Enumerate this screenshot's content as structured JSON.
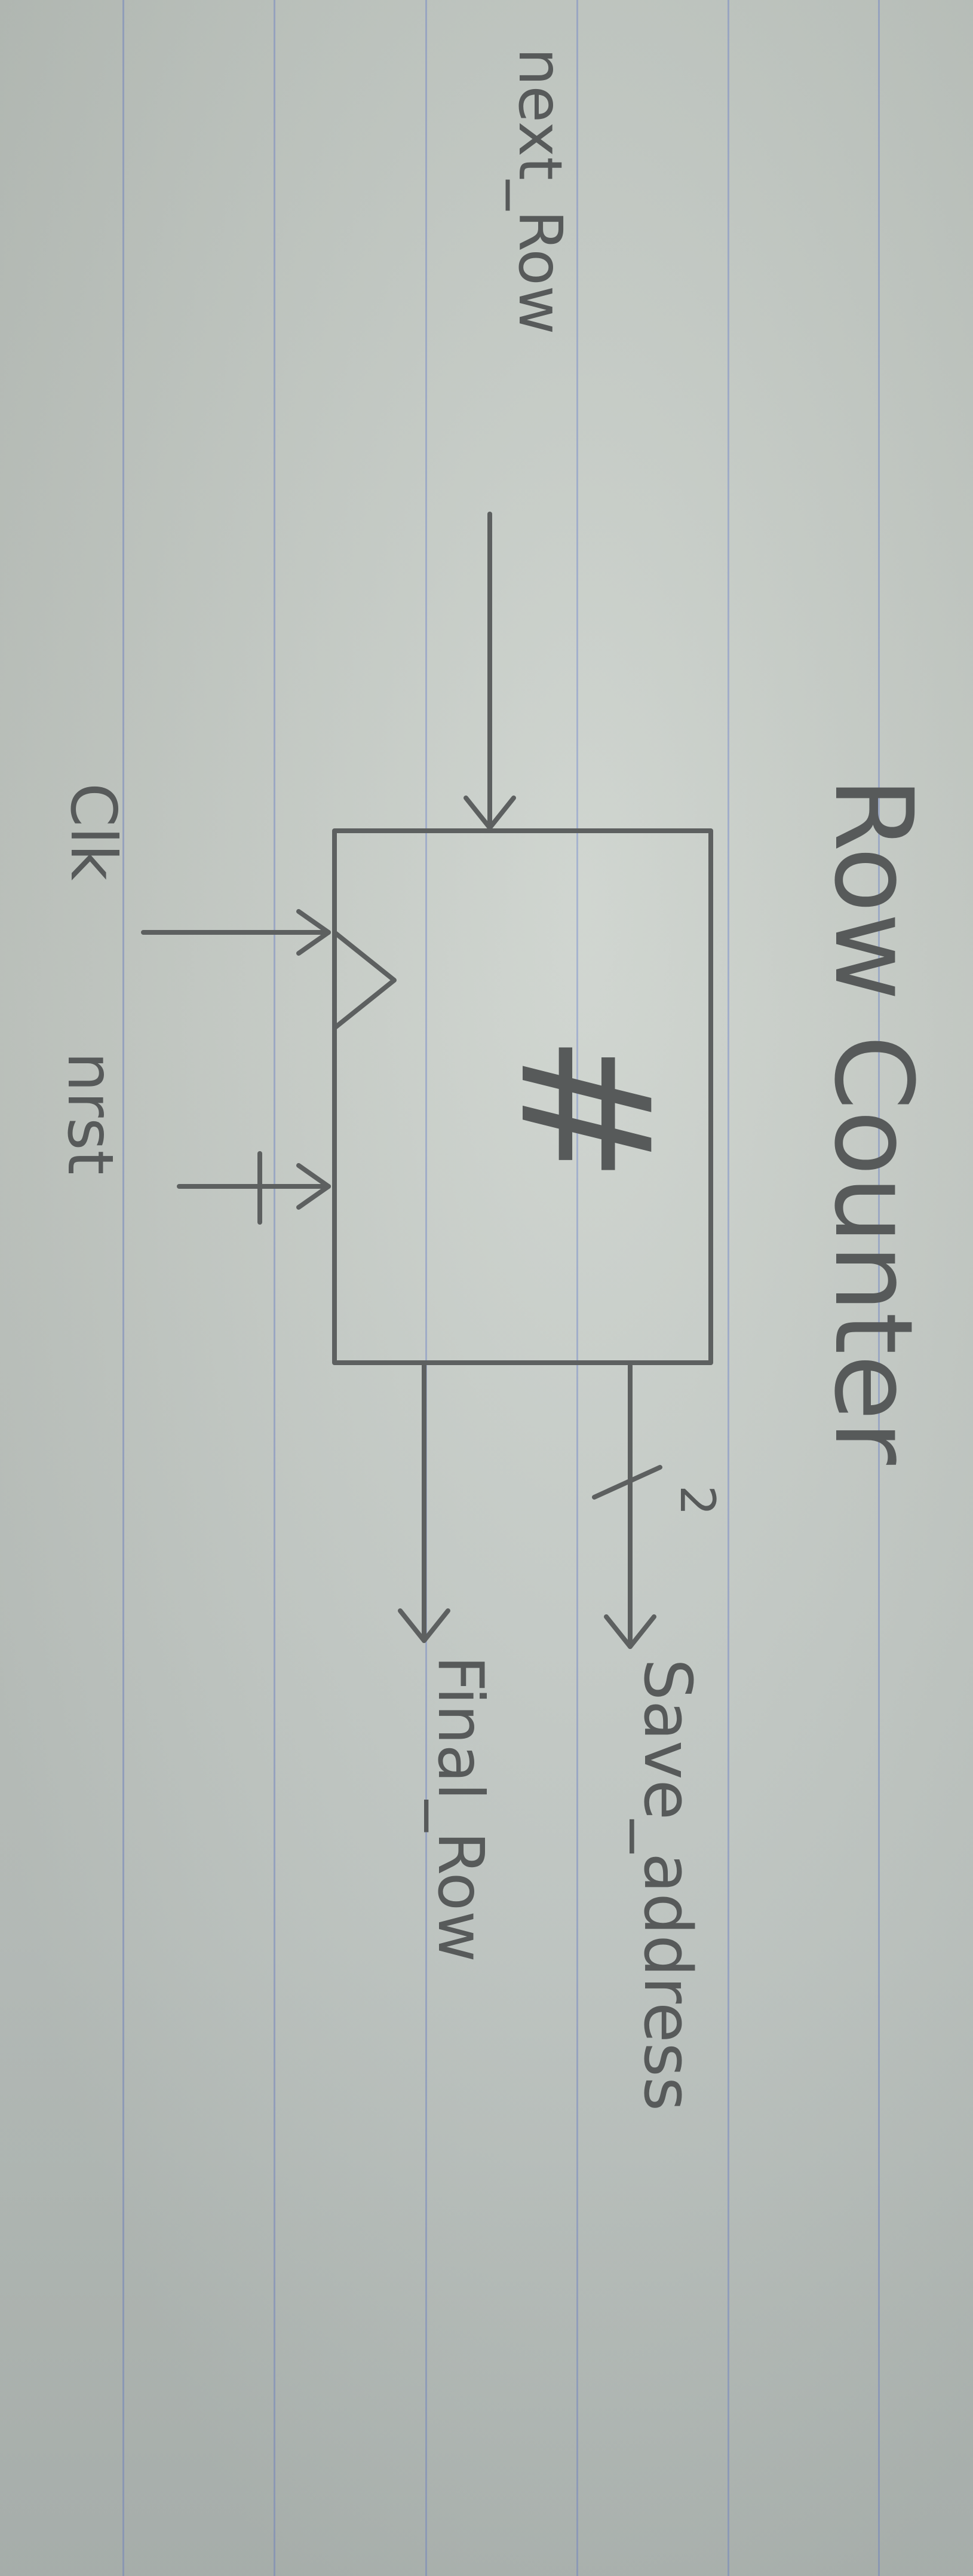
{
  "diagram": {
    "title": "Row Counter",
    "block_symbol": "#",
    "inputs": {
      "next_row": "next_Row",
      "clk": "Clk",
      "nrst": "nrst"
    },
    "outputs": {
      "save_address": "Save_address",
      "save_address_width": "2",
      "final_row": "Final_Row"
    }
  }
}
